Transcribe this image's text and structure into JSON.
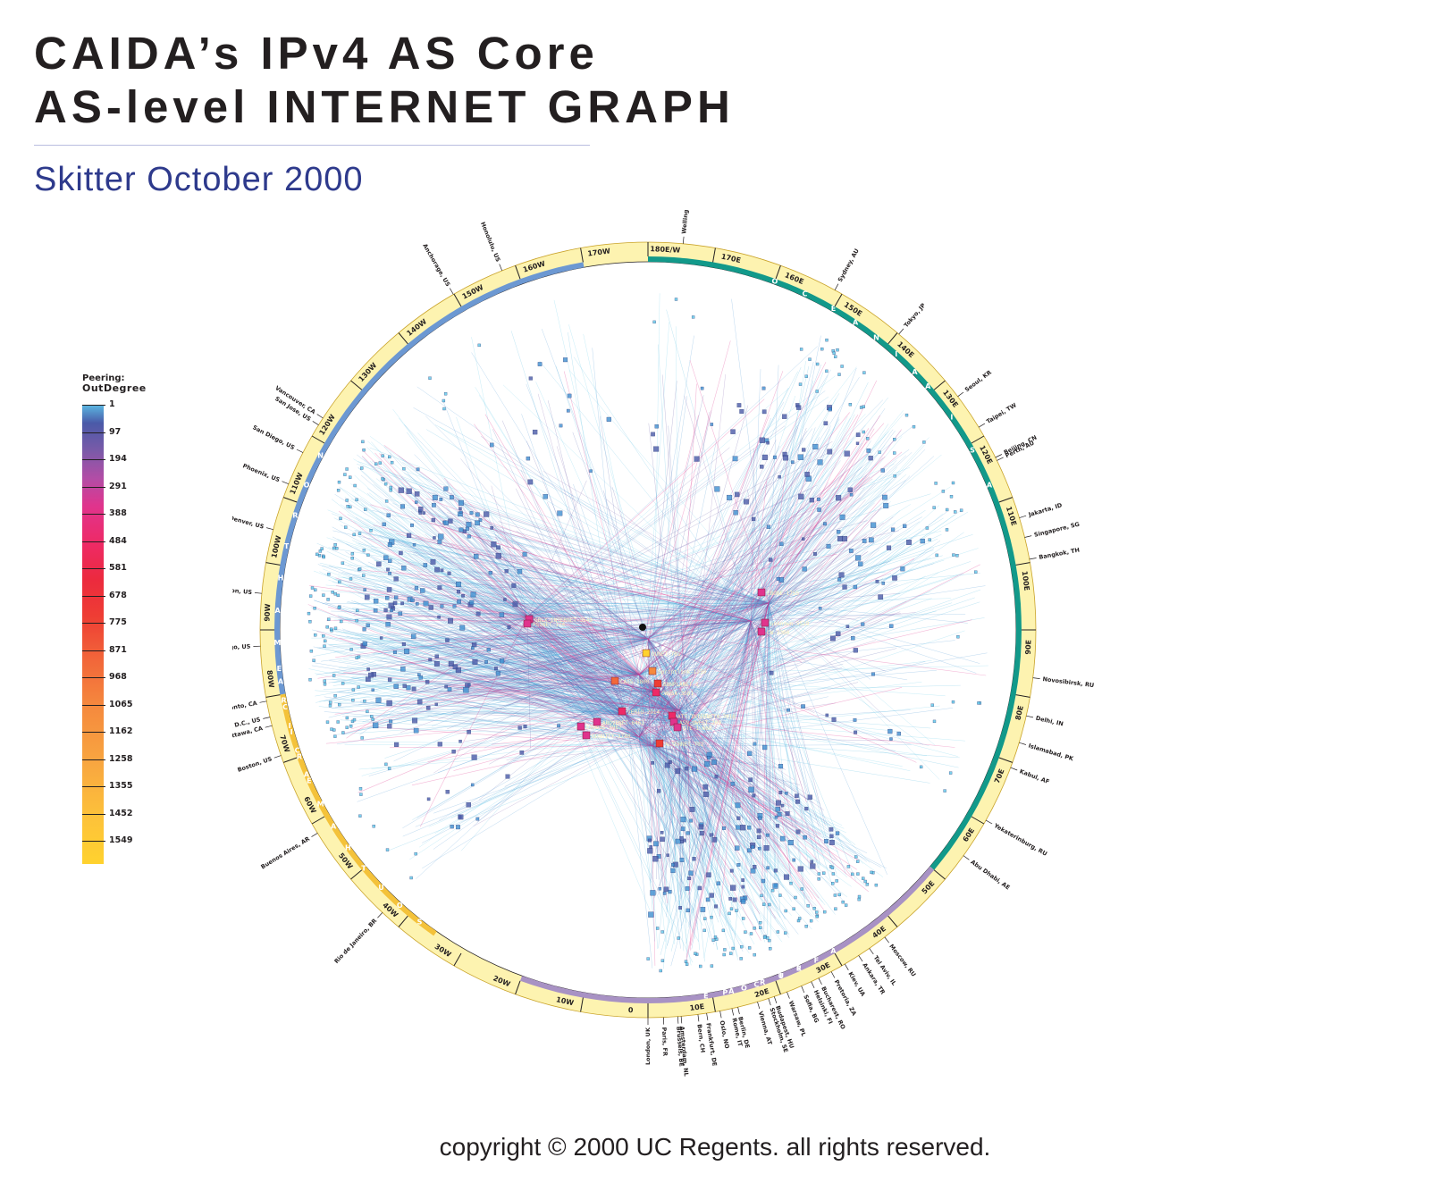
{
  "header": {
    "title_line1": "CAIDA’s IPv4 AS Core",
    "title_line2": "AS-level INTERNET GRAPH",
    "subtitle": "Skitter October 2000"
  },
  "legend": {
    "title_line1": "Peering:",
    "title_line2": "OutDegree",
    "ticks": [
      "1",
      "97",
      "194",
      "291",
      "388",
      "484",
      "581",
      "678",
      "775",
      "871",
      "968",
      "1065",
      "1162",
      "1258",
      "1355",
      "1452",
      "1549"
    ]
  },
  "ring": {
    "degree_labels": [
      {
        "lon": 10,
        "label": "10E"
      },
      {
        "lon": 20,
        "label": "20E"
      },
      {
        "lon": 30,
        "label": "30E"
      },
      {
        "lon": 40,
        "label": "40E"
      },
      {
        "lon": 50,
        "label": "50E"
      },
      {
        "lon": 60,
        "label": "60E"
      },
      {
        "lon": 70,
        "label": "70E"
      },
      {
        "lon": 80,
        "label": "80E"
      },
      {
        "lon": 90,
        "label": "90E"
      },
      {
        "lon": 100,
        "label": "100E"
      },
      {
        "lon": 110,
        "label": "110E"
      },
      {
        "lon": 120,
        "label": "120E"
      },
      {
        "lon": 130,
        "label": "130E"
      },
      {
        "lon": 140,
        "label": "140E"
      },
      {
        "lon": 150,
        "label": "150E"
      },
      {
        "lon": 160,
        "label": "160E"
      },
      {
        "lon": 170,
        "label": "170E"
      },
      {
        "lon": 180,
        "label": "180E/W"
      },
      {
        "lon": -170,
        "label": "170W"
      },
      {
        "lon": -160,
        "label": "160W"
      },
      {
        "lon": -150,
        "label": "150W"
      },
      {
        "lon": -140,
        "label": "140W"
      },
      {
        "lon": -130,
        "label": "130W"
      },
      {
        "lon": -120,
        "label": "120W"
      },
      {
        "lon": -110,
        "label": "110W"
      },
      {
        "lon": -100,
        "label": "100W"
      },
      {
        "lon": -90,
        "label": "90W"
      },
      {
        "lon": -80,
        "label": "80W"
      },
      {
        "lon": -70,
        "label": "70W"
      },
      {
        "lon": -60,
        "label": "60W"
      },
      {
        "lon": -50,
        "label": "50W"
      },
      {
        "lon": -40,
        "label": "40W"
      },
      {
        "lon": -30,
        "label": "30W"
      },
      {
        "lon": -20,
        "label": "20W"
      },
      {
        "lon": -10,
        "label": "10W"
      },
      {
        "lon": 0,
        "label": "0"
      }
    ],
    "region_bands": [
      {
        "from": 50,
        "to": 180,
        "color": "#12998a"
      },
      {
        "from": -20,
        "to": 50,
        "color": "#a892c4"
      },
      {
        "from": -170,
        "to": -80,
        "color": "#6c98d2"
      },
      {
        "from": -80,
        "to": -35,
        "color": "#f4c23a"
      }
    ],
    "region_letters": [
      {
        "text": "A",
        "lon": 113
      },
      {
        "text": "S",
        "lon": 119
      },
      {
        "text": "I",
        "lon": 125
      },
      {
        "text": "A",
        "lon": 131
      },
      {
        "text": "O",
        "lon": 160
      },
      {
        "text": "C",
        "lon": 155
      },
      {
        "text": "E",
        "lon": 150
      },
      {
        "text": "A",
        "lon": 146
      },
      {
        "text": "N",
        "lon": 142
      },
      {
        "text": "I",
        "lon": 138
      },
      {
        "text": "A",
        "lon": 134
      },
      {
        "text": "E",
        "lon": 24
      },
      {
        "text": "U",
        "lon": 21
      },
      {
        "text": "R",
        "lon": 18
      },
      {
        "text": "O",
        "lon": 15
      },
      {
        "text": "P",
        "lon": 12
      },
      {
        "text": "E",
        "lon": 9
      },
      {
        "text": "A",
        "lon": 30
      },
      {
        "text": "F",
        "lon": 27
      },
      {
        "text": "R",
        "lon": 24
      },
      {
        "text": "I",
        "lon": 21
      },
      {
        "text": "C",
        "lon": 17
      },
      {
        "text": "A",
        "lon": 13
      },
      {
        "text": "N",
        "lon": -118
      },
      {
        "text": "O",
        "lon": -113
      },
      {
        "text": "R",
        "lon": -108
      },
      {
        "text": "T",
        "lon": -103
      },
      {
        "text": "H",
        "lon": -98
      },
      {
        "text": "A",
        "lon": -93
      },
      {
        "text": "M",
        "lon": -88
      },
      {
        "text": "E",
        "lon": -84
      },
      {
        "text": "R",
        "lon": -79
      },
      {
        "text": "I",
        "lon": -75
      },
      {
        "text": "C",
        "lon": -71
      },
      {
        "text": "A",
        "lon": -67
      },
      {
        "text": "S",
        "lon": -38
      },
      {
        "text": "O",
        "lon": -42
      },
      {
        "text": "U",
        "lon": -46
      },
      {
        "text": "T",
        "lon": -50
      },
      {
        "text": "H",
        "lon": -54
      },
      {
        "text": "A",
        "lon": -58
      },
      {
        "text": "M",
        "lon": -62
      },
      {
        "text": "E",
        "lon": -66
      },
      {
        "text": "R",
        "lon": -70
      },
      {
        "text": "I",
        "lon": -74
      },
      {
        "text": "C",
        "lon": -78
      },
      {
        "text": "A",
        "lon": -82
      }
    ],
    "cities": [
      {
        "name": "London, UK",
        "lon": 0
      },
      {
        "name": "Paris, FR",
        "lon": 2.3
      },
      {
        "name": "Brussels, BE",
        "lon": 4.4
      },
      {
        "name": "Amsterdam, NL",
        "lon": 4.9
      },
      {
        "name": "Bern, CH",
        "lon": 7.4
      },
      {
        "name": "Frankfurt, DE",
        "lon": 8.7
      },
      {
        "name": "Oslo, NO",
        "lon": 10.7
      },
      {
        "name": "Rome, IT",
        "lon": 12.5
      },
      {
        "name": "Berlin, DE",
        "lon": 13.4
      },
      {
        "name": "Vienna, AT",
        "lon": 16.4
      },
      {
        "name": "Stockholm, SE",
        "lon": 18.1
      },
      {
        "name": "Budapest, HU",
        "lon": 19.0
      },
      {
        "name": "Warsaw, PL",
        "lon": 21.0
      },
      {
        "name": "Sofia, BG",
        "lon": 23.3
      },
      {
        "name": "Helsinki, FI",
        "lon": 24.9
      },
      {
        "name": "Bucharest, RO",
        "lon": 26.1
      },
      {
        "name": "Pretoria, ZA",
        "lon": 28.2
      },
      {
        "name": "Kiev, UA",
        "lon": 30.5
      },
      {
        "name": "Ankara, TR",
        "lon": 32.9
      },
      {
        "name": "Tel Aviv, IL",
        "lon": 34.8
      },
      {
        "name": "Moscow, RU",
        "lon": 37.6
      },
      {
        "name": "Abu Dhabi, AE",
        "lon": 54.4
      },
      {
        "name": "Yekaterinburg, RU",
        "lon": 60.6
      },
      {
        "name": "Kabul, AF",
        "lon": 69.2
      },
      {
        "name": "Islamabad, PK",
        "lon": 73.1
      },
      {
        "name": "Delhi, IN",
        "lon": 77.2
      },
      {
        "name": "Novosibirsk, RU",
        "lon": 82.9
      },
      {
        "name": "Bangkok, TH",
        "lon": 100.5
      },
      {
        "name": "Singapore, SG",
        "lon": 103.8
      },
      {
        "name": "Jakarta, ID",
        "lon": 106.8
      },
      {
        "name": "Perth, AU",
        "lon": 115.9
      },
      {
        "name": "Beijing, CN",
        "lon": 116.4
      },
      {
        "name": "Taipei, TW",
        "lon": 121.5
      },
      {
        "name": "Seoul, KR",
        "lon": 127.0
      },
      {
        "name": "Tokyo, JP",
        "lon": 139.7
      },
      {
        "name": "Sydney, AU",
        "lon": 151.2
      },
      {
        "name": "Wellington, NZ",
        "lon": 174.8
      },
      {
        "name": "Honolulu, US",
        "lon": -157.9
      },
      {
        "name": "Anchorage, US",
        "lon": -149.9
      },
      {
        "name": "Vancouver, CA",
        "lon": -123.1
      },
      {
        "name": "San Jose, US",
        "lon": -121.9
      },
      {
        "name": "San Diego, US",
        "lon": -117.2
      },
      {
        "name": "Phoenix, US",
        "lon": -112.1
      },
      {
        "name": "Denver, US",
        "lon": -105.0
      },
      {
        "name": "Houston, US",
        "lon": -95.4
      },
      {
        "name": "Chicago, US",
        "lon": -87.6
      },
      {
        "name": "Toronto, CA",
        "lon": -79.4
      },
      {
        "name": "Washington D.C., US",
        "lon": -77.0
      },
      {
        "name": "Ottawa, CA",
        "lon": -75.7
      },
      {
        "name": "Boston, US",
        "lon": -71.1
      },
      {
        "name": "Buenos Aires, AR",
        "lon": -58.4
      },
      {
        "name": "Rio de Janeiro, BR",
        "lon": -43.2
      }
    ]
  },
  "core_labels": [
    {
      "text": "GBLX-INTERNET-3549",
      "color": "#e0348d"
    },
    {
      "text": "PSINET-174",
      "color": "#e0348d"
    },
    {
      "text": "EBONE-1755",
      "color": "#e0348d"
    },
    {
      "text": "unknown-5519",
      "color": "#e0348d"
    },
    {
      "text": "CW-3300",
      "color": "#e0348d"
    },
    {
      "text": "UUNET-701",
      "color": "#ffd22e"
    },
    {
      "text": "Sprintlink-1239",
      "color": "#f58a3e"
    },
    {
      "text": "CAIS-1800",
      "color": "#f2683a"
    },
    {
      "text": "BBNPLANET-1",
      "color": "#ee3d34"
    },
    {
      "text": "CWUSA-3561",
      "color": "#ee2a67"
    },
    {
      "text": "VERIO-2914",
      "color": "#ee2a67"
    },
    {
      "text": "ATT-INTERNET4-7018",
      "color": "#ee2a67"
    },
    {
      "text": "EXODUS-3967",
      "color": "#e0348d"
    },
    {
      "text": "ABOVENET-6461",
      "color": "#e0348d"
    },
    {
      "text": "ASN-QWEST-209",
      "color": "#e0348d"
    },
    {
      "text": "GTE-1-668",
      "color": "#e0348d"
    },
    {
      "text": "ALTERNET-702",
      "color": "#ee3d34"
    },
    {
      "text": "GENUITY-3740",
      "color": "#e0348d"
    }
  ],
  "colors": {
    "low_degree": "#5bc8e8",
    "mid_degree": "#4a5aa8",
    "high_degree": "#e0348d",
    "top_degree": "#ffd22e",
    "ring_outer": "#fdf3b0"
  },
  "footer": {
    "copyright": "copyright © 2000 UC Regents. all rights reserved."
  }
}
